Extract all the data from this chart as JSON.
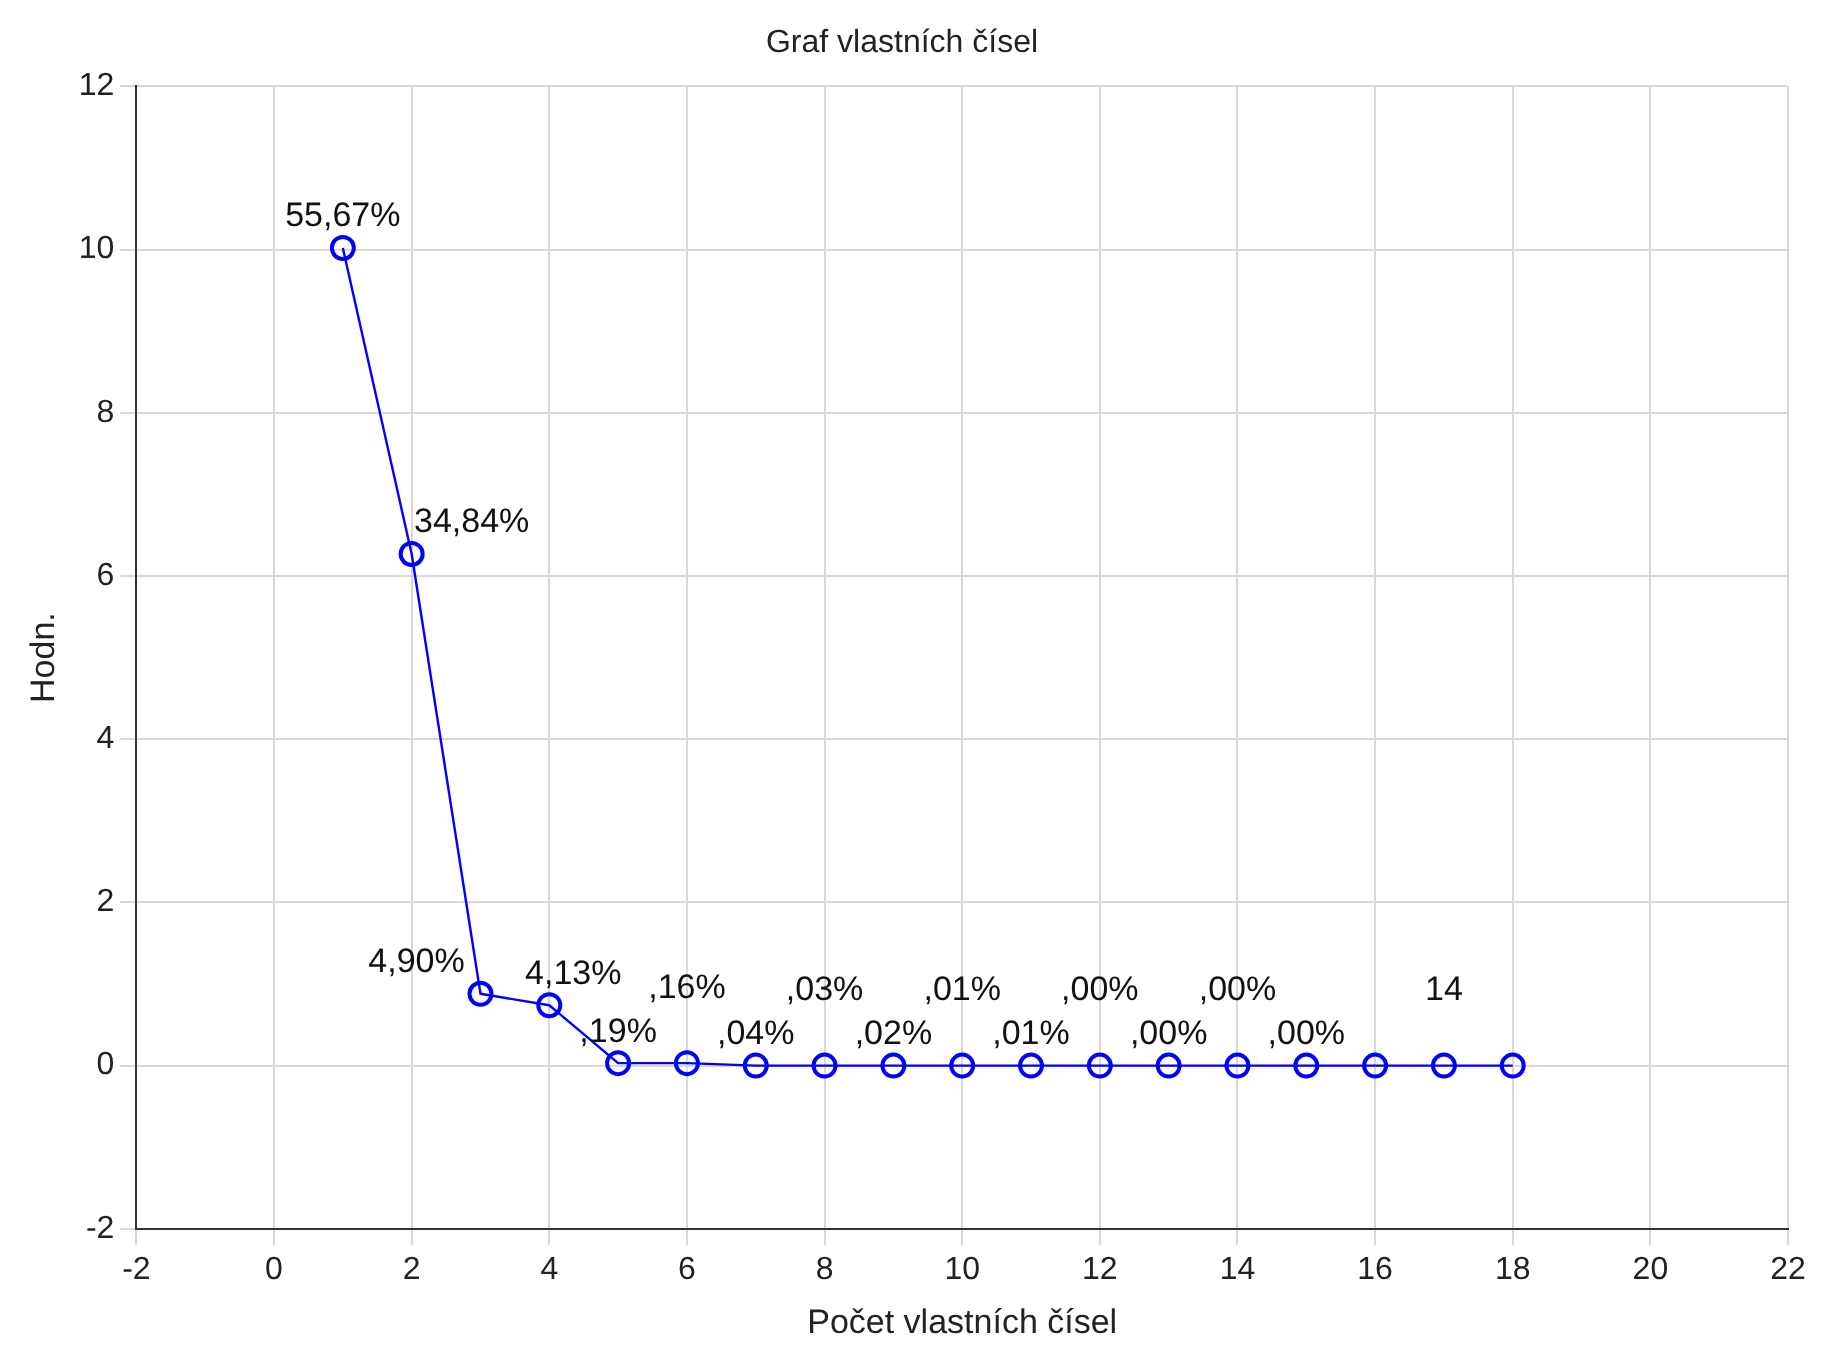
{
  "chart_data": {
    "type": "line",
    "title": "Graf vlastních čísel",
    "xlabel": "Počet vlastních čísel",
    "ylabel": "Hodn.",
    "x": [
      1,
      2,
      3,
      4,
      5,
      6,
      7,
      8,
      9,
      10,
      11,
      12,
      13,
      14,
      15,
      16,
      17,
      18
    ],
    "series": [
      {
        "color": "#0000ff",
        "values": [
          10.02,
          6.27,
          0.88,
          0.74,
          0.03,
          0.03,
          0,
          0,
          0,
          0,
          0,
          0,
          0,
          0,
          0,
          0,
          0,
          0
        ]
      }
    ],
    "annotations": [
      {
        "text": "55,67%",
        "x": 1,
        "y": 10.02
      },
      {
        "text": "34,84%",
        "x": 2,
        "y": 6.27
      },
      {
        "text": "4,90%",
        "x": 3,
        "y": 0.88
      },
      {
        "text": "4,13%",
        "x": 4,
        "y": 0.74
      },
      {
        "text": ",19%",
        "x": 5,
        "y": 0.03
      },
      {
        "text": ",16%",
        "x": 6,
        "y": 0.03
      },
      {
        "text": ",04%",
        "x": 7,
        "y": 0
      },
      {
        "text": ",03%",
        "x": 8,
        "y": 0
      },
      {
        "text": ",02%",
        "x": 9,
        "y": 0
      },
      {
        "text": ",01%",
        "x": 10,
        "y": 0
      },
      {
        "text": ",01%",
        "x": 11,
        "y": 0
      },
      {
        "text": ",00%",
        "x": 12,
        "y": 0
      },
      {
        "text": ",00%",
        "x": 13,
        "y": 0
      },
      {
        "text": ",00%",
        "x": 14,
        "y": 0
      },
      {
        "text": ",00%",
        "x": 15,
        "y": 0
      },
      {
        "text": "14",
        "x": 17,
        "y": 0
      }
    ],
    "xlim": [
      -2,
      22
    ],
    "xticks": [
      -2,
      0,
      2,
      4,
      6,
      8,
      10,
      12,
      14,
      16,
      18,
      20,
      22
    ],
    "ylim": [
      -2,
      12
    ],
    "yticks": [
      -2,
      0,
      2,
      4,
      6,
      8,
      10,
      12
    ],
    "grid": true,
    "marker": "circle",
    "line_style": "solid",
    "legend": false
  }
}
